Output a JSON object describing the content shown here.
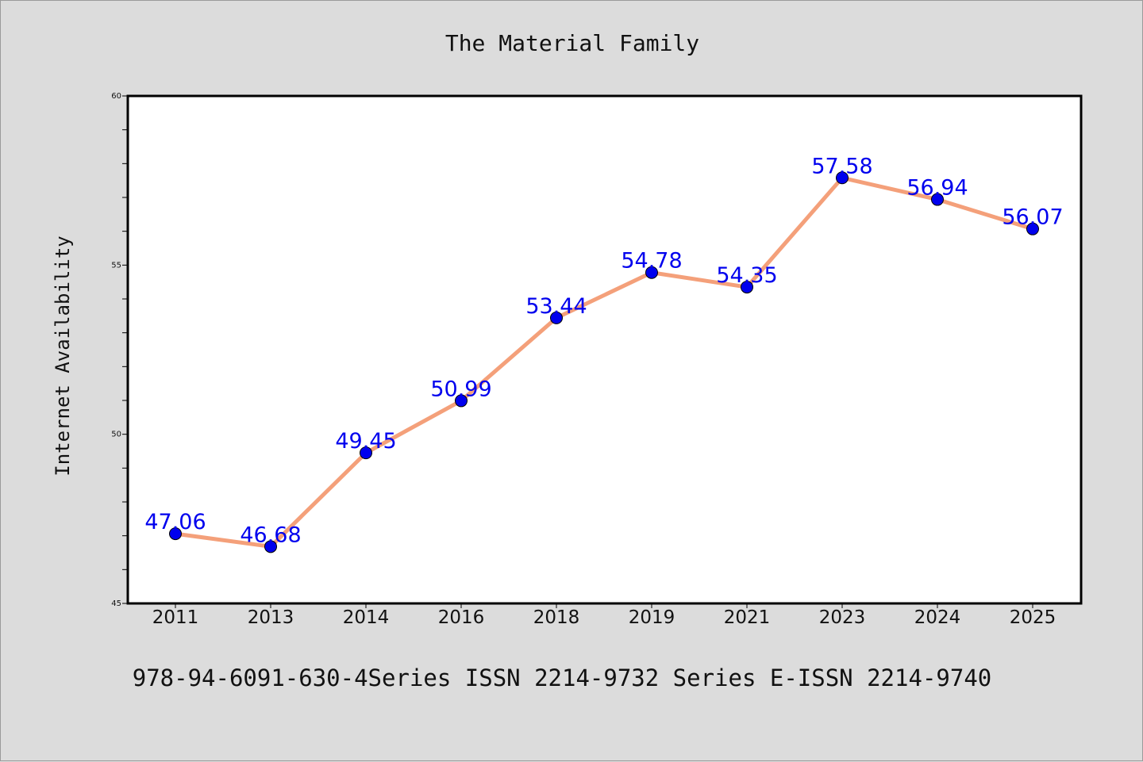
{
  "chart_data": {
    "type": "line",
    "title": "The Material Family",
    "xlabel": "",
    "ylabel": "Internet Availability",
    "categories": [
      "2011",
      "2013",
      "2014",
      "2016",
      "2018",
      "2019",
      "2021",
      "2023",
      "2024",
      "2025"
    ],
    "series": [
      {
        "values": [
          47.06,
          46.68,
          49.45,
          50.99,
          53.44,
          54.78,
          54.35,
          57.58,
          56.94,
          56.07
        ],
        "data_labels": [
          "47.06",
          "46.68",
          "49.45",
          "50.99",
          "53.44",
          "54.78",
          "54.35",
          "57.58",
          "56.94",
          "56.07"
        ]
      }
    ],
    "ylim": [
      45,
      60
    ],
    "yticks": [
      "45",
      "50",
      "55",
      "60"
    ],
    "grid": false,
    "line_color": "#f4a07a",
    "marker_color": "#0000ee",
    "label_color": "#0000ee"
  },
  "footer": {
    "text": "978-94-6091-630-4Series ISSN 2214-9732 Series E-ISSN 2214-9740"
  }
}
